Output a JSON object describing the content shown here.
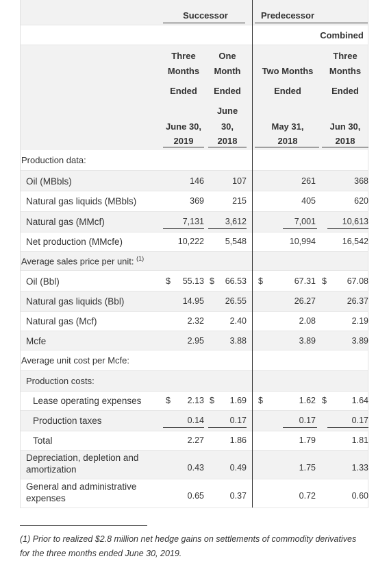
{
  "headers": {
    "group_successor": "Successor",
    "group_predecessor": "Predecessor",
    "combined": "Combined",
    "col1": [
      "Three",
      "Months",
      "Ended",
      "June 30,",
      "2019"
    ],
    "col2": [
      "One",
      "Month",
      "Ended",
      "June",
      "30,",
      "2018"
    ],
    "col3": [
      "Two Months",
      "Ended",
      "May 31,",
      "2018"
    ],
    "col4": [
      "Three",
      "Months",
      "Ended",
      "Jun 30,",
      "2018"
    ]
  },
  "rows": [
    {
      "label": "Production data:",
      "type": "section"
    },
    {
      "label": "Oil (MBbls)",
      "values": [
        "146",
        "107",
        "261",
        "368"
      ]
    },
    {
      "label": "Natural gas liquids (MBbls)",
      "values": [
        "369",
        "215",
        "405",
        "620"
      ]
    },
    {
      "label": "Natural gas (MMcf)",
      "values": [
        "7,131",
        "3,612",
        "7,001",
        "10,613"
      ]
    },
    {
      "label": "Net production (MMcfe)",
      "values": [
        "10,222",
        "5,548",
        "10,994",
        "16,542"
      ]
    },
    {
      "label": "Average sales price per unit:",
      "sup": "(1)",
      "type": "section"
    },
    {
      "label": "Oil (Bbl)",
      "dollar": "$",
      "values": [
        "55.13",
        "66.53",
        "67.31",
        "67.08"
      ]
    },
    {
      "label": "Natural gas liquids (Bbl)",
      "values": [
        "14.95",
        "26.55",
        "26.27",
        "26.37"
      ]
    },
    {
      "label": "Natural gas (Mcf)",
      "values": [
        "2.32",
        "2.40",
        "2.08",
        "2.19"
      ]
    },
    {
      "label": "Mcfe",
      "values": [
        "2.95",
        "3.88",
        "3.89",
        "3.89"
      ]
    },
    {
      "label": "Average unit cost per Mcfe:",
      "type": "section"
    },
    {
      "label": "Production costs:",
      "type": "subsection"
    },
    {
      "label": "Lease operating expenses",
      "dollar": "$",
      "values": [
        "2.13",
        "1.69",
        "1.62",
        "1.64"
      ]
    },
    {
      "label": "Production taxes",
      "values": [
        "0.14",
        "0.17",
        "0.17",
        "0.17"
      ]
    },
    {
      "label": "Total",
      "values": [
        "2.27",
        "1.86",
        "1.79",
        "1.81"
      ]
    },
    {
      "label": "Depreciation, depletion and amortization",
      "values": [
        "0.43",
        "0.49",
        "1.75",
        "1.33"
      ]
    },
    {
      "label": "General and administrative expenses",
      "values": [
        "0.65",
        "0.37",
        "0.72",
        "0.60"
      ]
    }
  ],
  "footnote": "(1)  Prior to realized $2.8 million net hedge gains on settlements of commodity derivatives for the three months ended June 30, 2019."
}
